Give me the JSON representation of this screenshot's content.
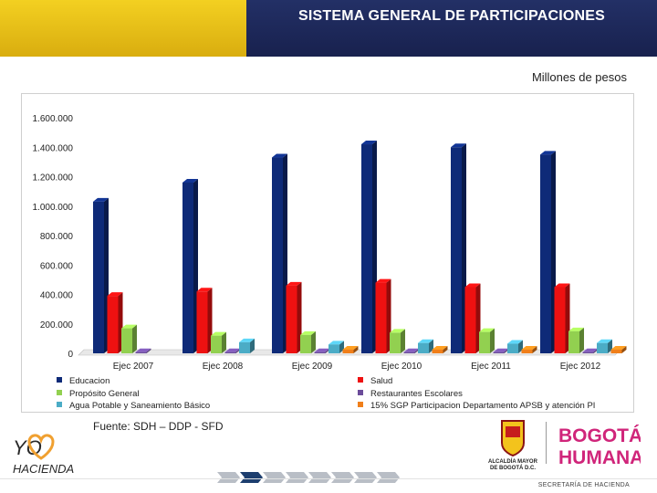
{
  "header": {
    "title": "SISTEMA GENERAL DE PARTICIPACIONES",
    "colors": {
      "gold": "#e7bf12",
      "navy": "#1f2a5c"
    }
  },
  "units_label": "Millones de pesos",
  "source": "Fuente: SDH – DDP - SFD",
  "footer": {
    "secretaria": "SECRETARÍA DE HACIENDA",
    "logo_yo": "YO",
    "logo_hacienda": "HACIENDA",
    "alcaldia_line1": "ALCALDÍA MAYOR",
    "alcaldia_line2": "DE BOGOTÁ D.C.",
    "bogota_line1": "BOGOTÁ",
    "bogota_line2": "HUMANA",
    "progress_steps": 8,
    "progress_active_index": 1
  },
  "chart_data": {
    "type": "bar",
    "title": "",
    "xlabel": "",
    "ylabel": "",
    "ylim": [
      0,
      1600000
    ],
    "yticks": [
      0,
      200000,
      400000,
      600000,
      800000,
      1000000,
      1200000,
      1400000,
      1600000
    ],
    "ytick_labels": [
      "0",
      "200.000",
      "400.000",
      "600.000",
      "800.000",
      "1.000.000",
      "1.200.000",
      "1.400.000",
      "1.600.000"
    ],
    "categories": [
      "Ejec 2007",
      "Ejec 2008",
      "Ejec 2009",
      "Ejec 2010",
      "Ejec 2011",
      "Ejec 2012"
    ],
    "series": [
      {
        "name": "Educacion",
        "color": "#0e2a78",
        "values": [
          1030000,
          1160000,
          1330000,
          1420000,
          1400000,
          1350000
        ]
      },
      {
        "name": "Salud",
        "color": "#ee1111",
        "values": [
          390000,
          420000,
          460000,
          480000,
          450000,
          450000
        ]
      },
      {
        "name": "Propósito General",
        "color": "#92d050",
        "values": [
          170000,
          120000,
          125000,
          140000,
          145000,
          150000
        ]
      },
      {
        "name": "Restaurantes Escolares",
        "color": "#6b4c9a",
        "values": [
          8000,
          8000,
          8000,
          8000,
          8000,
          8000
        ]
      },
      {
        "name": "Agua Potable y Saneamiento Básico",
        "color": "#4bacc6",
        "values": [
          0,
          75000,
          60000,
          70000,
          65000,
          70000
        ]
      },
      {
        "name": "15% SGP Participacion Departamento APSB y atención PI",
        "color": "#f07f1a",
        "values": [
          0,
          0,
          25000,
          25000,
          25000,
          25000
        ]
      }
    ],
    "legend": {
      "placement": "bottom",
      "columns": 2,
      "order": [
        "Educacion",
        "Salud",
        "Propósito General",
        "Restaurantes Escolares",
        "Agua Potable y Saneamiento Básico",
        "15% SGP Participacion Departamento APSB y atención PI"
      ]
    }
  }
}
